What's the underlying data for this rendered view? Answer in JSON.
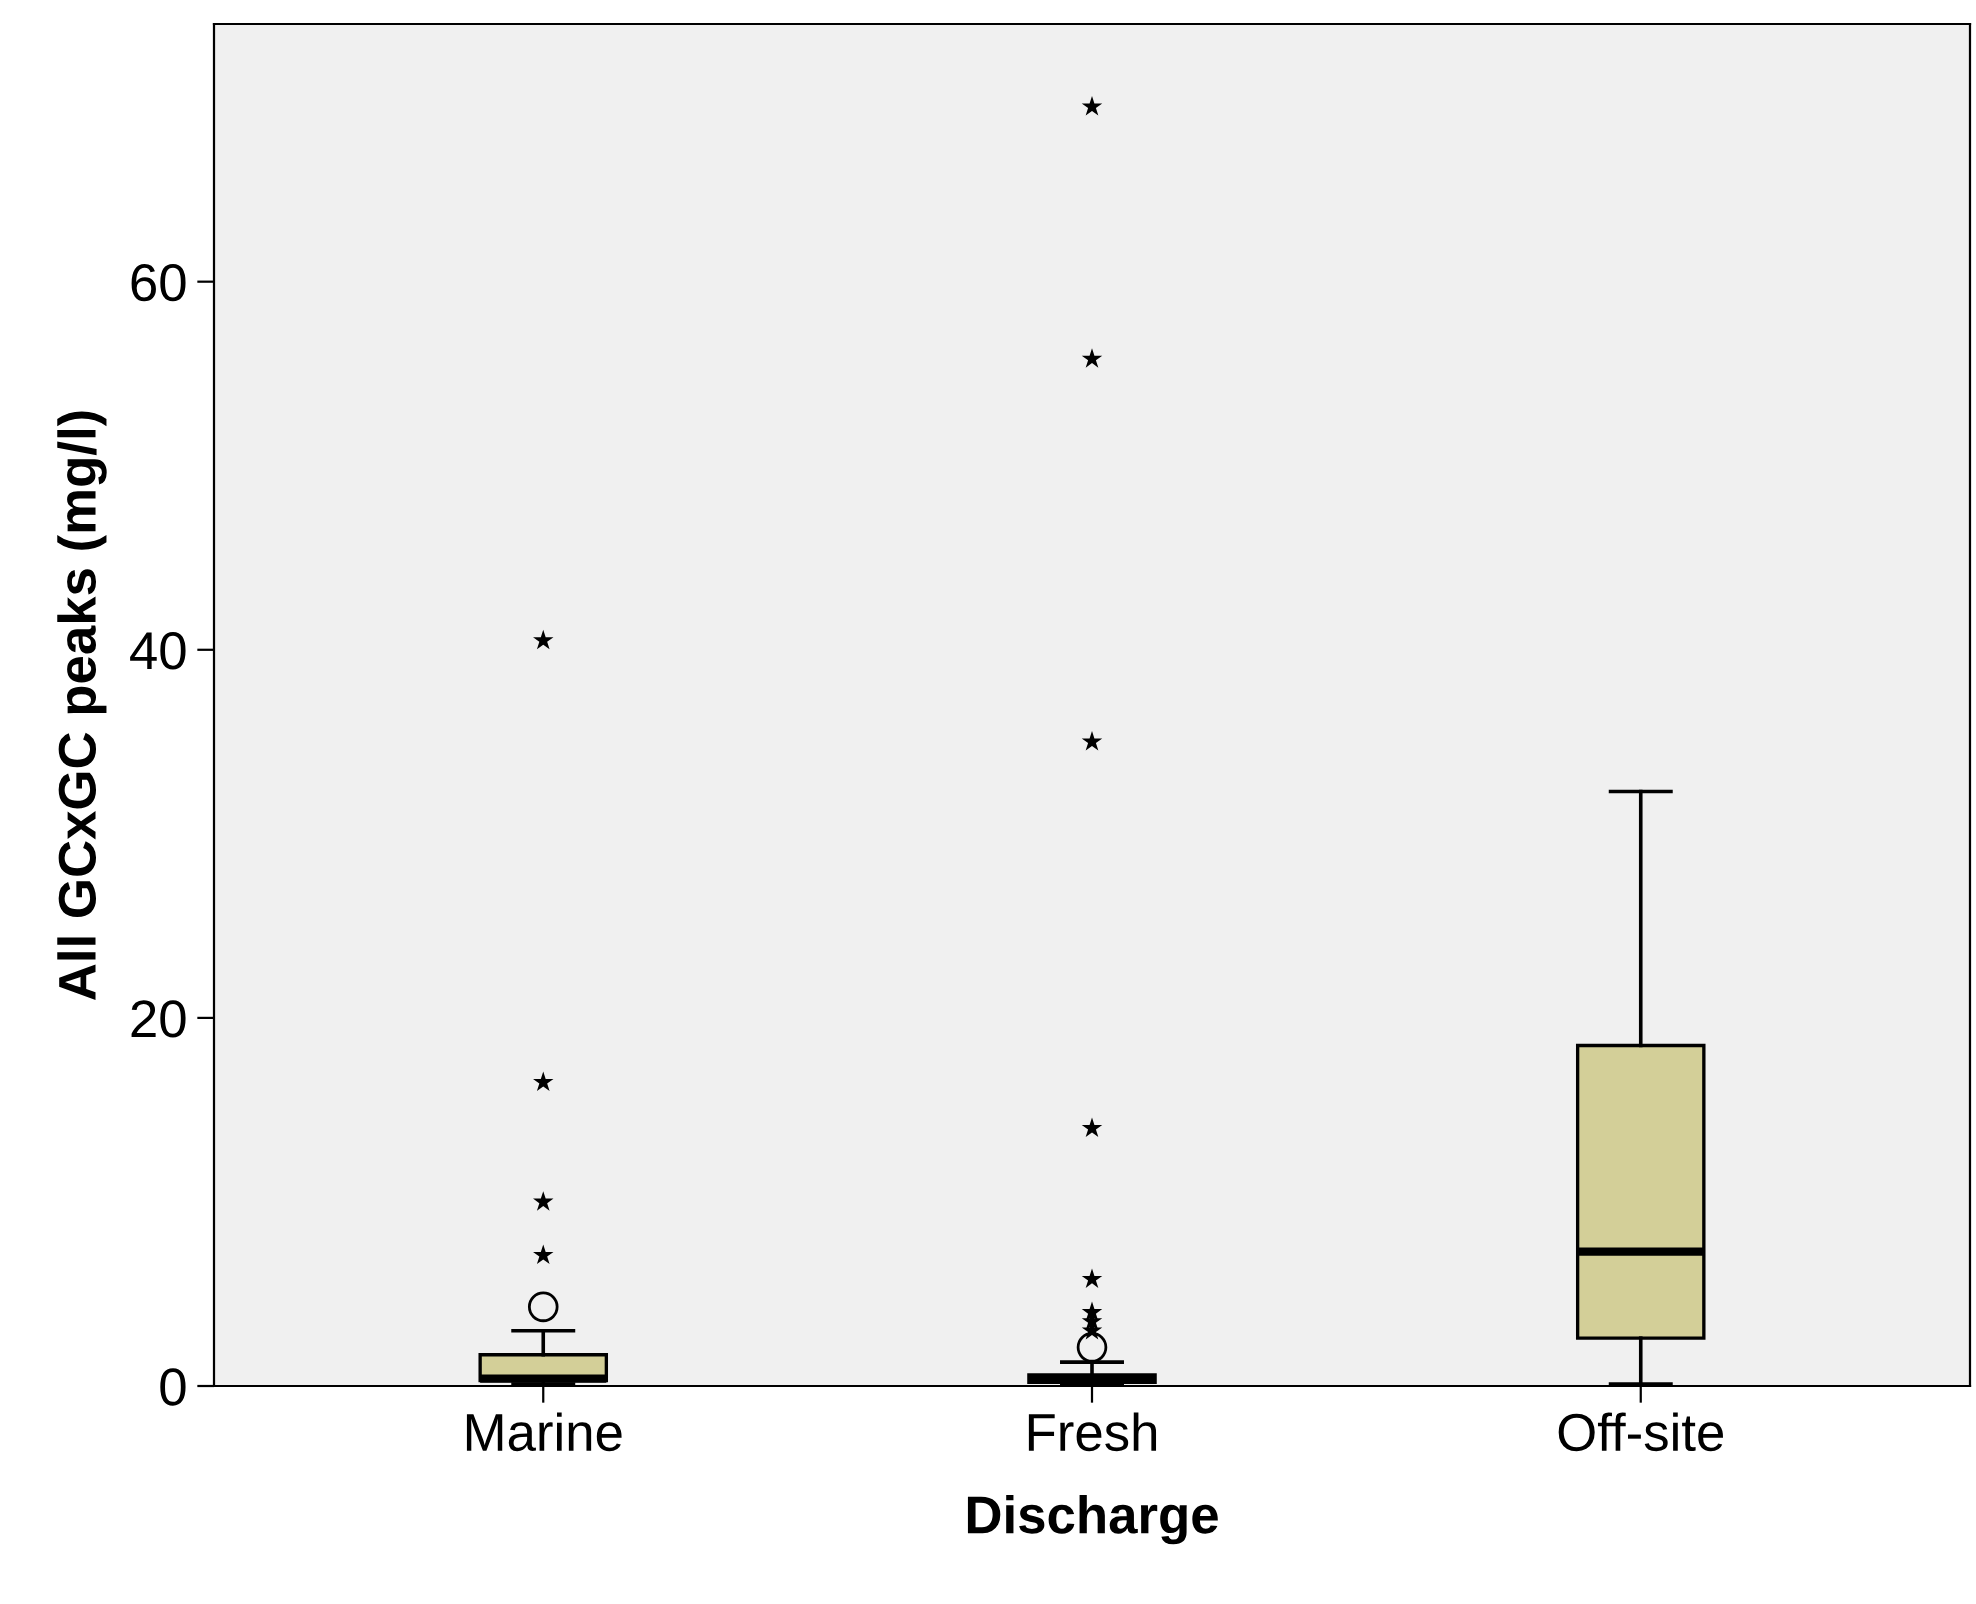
{
  "chart_data": {
    "type": "box",
    "xlabel": "Discharge",
    "ylabel": "All GCxGC peaks (mg/l)",
    "categories": [
      "Marine",
      "Fresh",
      "Off-site"
    ],
    "ylim": [
      0,
      74
    ],
    "yticks": [
      0,
      20,
      40,
      60
    ],
    "grid": false,
    "legend": false,
    "series": [
      {
        "color": "#d3cf98",
        "boxes": [
          {
            "low": 0.1,
            "q1": 0.3,
            "median": 0.4,
            "q3": 1.7,
            "high": 3.0,
            "outliers": [
              4.3
            ]
          },
          {
            "low": 0.1,
            "q1": 0.2,
            "median": 0.4,
            "q3": 0.6,
            "high": 1.3,
            "outliers": [
              2.1
            ]
          },
          {
            "low": 0.1,
            "q1": 2.6,
            "median": 7.3,
            "q3": 18.5,
            "high": 32.3
          }
        ]
      },
      {
        "type": "scatter",
        "marker": "star",
        "color": "#000000",
        "x": [
          "Marine",
          "Marine",
          "Marine",
          "Marine",
          "Fresh",
          "Fresh",
          "Fresh",
          "Fresh",
          "Fresh",
          "Fresh",
          "Fresh",
          "Fresh"
        ],
        "values": [
          40.5,
          16.5,
          10.0,
          7.1,
          69.5,
          55.8,
          35.0,
          14.0,
          5.8,
          4.0,
          3.5,
          3.0
        ]
      }
    ]
  }
}
